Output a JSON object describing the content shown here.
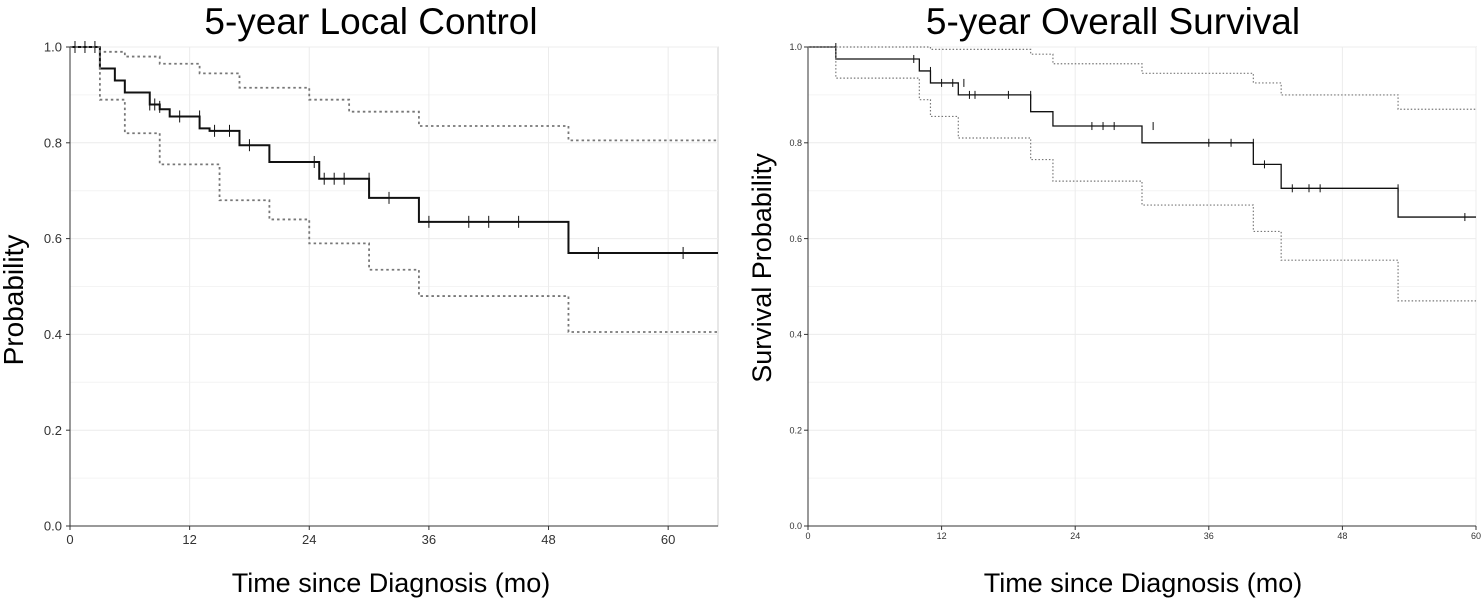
{
  "chart_data": [
    {
      "type": "line",
      "title": "5-year Local Control",
      "xlabel": "Time since Diagnosis (mo)",
      "ylabel": "Probability",
      "xlim": [
        0,
        65
      ],
      "ylim": [
        0,
        1.0
      ],
      "xticks": [
        0,
        12,
        24,
        36,
        48,
        60
      ],
      "xtick_labels": [
        "0",
        "12",
        "24",
        "36",
        "48",
        "60"
      ],
      "yticks": [
        0,
        0.2,
        0.4,
        0.6,
        0.8,
        1.0
      ],
      "ytick_labels": [
        "0.0",
        "0.2",
        "0.4",
        "0.6",
        "0.8",
        "1.0"
      ],
      "grid": true,
      "series": [
        {
          "style": "solid",
          "x": [
            0,
            3,
            4.5,
            5.5,
            8,
            9,
            10,
            13,
            14,
            17,
            20,
            25,
            30,
            35,
            50,
            65
          ],
          "y": [
            1.0,
            0.955,
            0.93,
            0.905,
            0.88,
            0.87,
            0.855,
            0.83,
            0.825,
            0.795,
            0.76,
            0.725,
            0.685,
            0.635,
            0.57,
            0.57
          ],
          "censor_x": [
            0.5,
            1.5,
            2.5,
            8,
            8.5,
            9,
            11,
            13,
            14.5,
            16,
            18,
            24.5,
            25.5,
            26.5,
            27.5,
            30,
            32,
            36,
            40,
            42,
            45,
            53,
            61.5
          ],
          "censor_y": [
            1.0,
            1.0,
            1.0,
            0.88,
            0.88,
            0.875,
            0.855,
            0.855,
            0.825,
            0.825,
            0.795,
            0.76,
            0.725,
            0.725,
            0.725,
            0.725,
            0.685,
            0.635,
            0.635,
            0.635,
            0.635,
            0.57,
            0.57
          ]
        },
        {
          "style": "dotted",
          "x": [
            0,
            3,
            5.5,
            9,
            13,
            17,
            24,
            28,
            35,
            50,
            65
          ],
          "y": [
            1.0,
            0.99,
            0.98,
            0.965,
            0.945,
            0.915,
            0.89,
            0.865,
            0.835,
            0.805,
            0.805
          ]
        },
        {
          "style": "dotted",
          "x": [
            0,
            3,
            5.5,
            9,
            15,
            20,
            24,
            30,
            35,
            50,
            65
          ],
          "y": [
            1.0,
            0.89,
            0.82,
            0.755,
            0.68,
            0.64,
            0.59,
            0.535,
            0.48,
            0.405,
            0.405
          ]
        }
      ]
    },
    {
      "type": "line",
      "title": "5-year Overall Survival",
      "xlabel": "Time since Diagnosis (mo)",
      "ylabel": "Survival Probability",
      "xlim": [
        0,
        60
      ],
      "ylim": [
        0,
        1.0
      ],
      "xticks": [
        0,
        12,
        24,
        36,
        48,
        60
      ],
      "xtick_labels": [
        "0",
        "12",
        "24",
        "36",
        "48",
        "60"
      ],
      "yticks": [
        0,
        0.2,
        0.4,
        0.6,
        0.8,
        1.0
      ],
      "ytick_labels": [
        "0.0",
        "0.2",
        "0.4",
        "0.6",
        "0.8",
        "1.0"
      ],
      "grid": true,
      "series": [
        {
          "style": "solid",
          "x": [
            0,
            2.5,
            10,
            11,
            13.5,
            20,
            22,
            30,
            40,
            42.5,
            53,
            60
          ],
          "y": [
            1.0,
            0.975,
            0.95,
            0.925,
            0.9,
            0.865,
            0.835,
            0.8,
            0.755,
            0.705,
            0.645,
            0.645
          ],
          "censor_x": [
            2.5,
            9.5,
            11,
            12,
            13,
            14,
            14.5,
            15,
            18,
            20,
            25.5,
            26.5,
            27.5,
            31,
            36,
            38,
            40,
            41,
            43.5,
            45,
            46,
            53,
            59
          ],
          "censor_y": [
            1.0,
            0.975,
            0.95,
            0.925,
            0.925,
            0.925,
            0.9,
            0.9,
            0.9,
            0.9,
            0.835,
            0.835,
            0.835,
            0.835,
            0.8,
            0.8,
            0.8,
            0.755,
            0.705,
            0.705,
            0.705,
            0.705,
            0.645
          ]
        },
        {
          "style": "dotted",
          "x": [
            0,
            11,
            20,
            22,
            30,
            40,
            42.5,
            53,
            60
          ],
          "y": [
            1.0,
            0.995,
            0.985,
            0.965,
            0.945,
            0.925,
            0.9,
            0.87,
            0.87
          ]
        },
        {
          "style": "dotted",
          "x": [
            0,
            2.5,
            10,
            11,
            13.5,
            20,
            22,
            30,
            40,
            42.5,
            53,
            60
          ],
          "y": [
            1.0,
            0.935,
            0.89,
            0.855,
            0.81,
            0.765,
            0.72,
            0.67,
            0.615,
            0.555,
            0.47,
            0.47
          ]
        }
      ]
    }
  ]
}
